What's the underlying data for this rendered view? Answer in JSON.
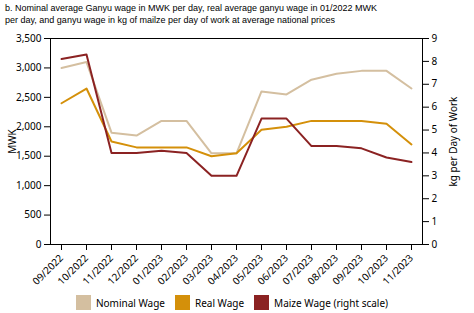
{
  "chart_data": {
    "type": "line",
    "title": "b. Nominal average Ganyu wage in MWK per day, real average ganyu wage in 01/2022 MWK\nper day, and ganyu wage in kg of mailze per day of work at average national prices",
    "categories": [
      "09/2022",
      "10/2022",
      "11/2022",
      "12/2022",
      "01/2023",
      "02/2023",
      "03/2023",
      "04/2023",
      "05/2023",
      "06/2023",
      "07/2023",
      "08/2023",
      "09/2023",
      "10/2023",
      "11/2023"
    ],
    "series": [
      {
        "name": "Nominal Wage",
        "color": "#d4bfa0",
        "values": [
          3000,
          3100,
          1900,
          1850,
          2100,
          2100,
          1550,
          1550,
          2600,
          2550,
          2800,
          2900,
          2950,
          2950,
          2650
        ]
      },
      {
        "name": "Real Wage",
        "color": "#d4900a",
        "values": [
          2400,
          2650,
          1750,
          1650,
          1650,
          1650,
          1500,
          1550,
          1950,
          2000,
          2100,
          2100,
          2100,
          2050,
          1700
        ]
      },
      {
        "name": "Maize Wage (right scale)",
        "color": "#8b2222",
        "axis": "y2",
        "values": [
          8.1,
          8.3,
          4.0,
          4.0,
          4.1,
          4.0,
          3.0,
          3.0,
          5.5,
          5.5,
          4.3,
          4.3,
          4.2,
          3.8,
          3.6
        ]
      }
    ],
    "ylabel": "MWK",
    "y2label": "kg per Day of Work",
    "ylim": [
      0,
      3500
    ],
    "yticks": [
      0,
      500,
      {
        "value": 1000,
        "label": "1,000"
      },
      {
        "value": 1500,
        "label": "1,500"
      },
      {
        "value": 2000,
        "label": "2,000"
      },
      {
        "value": 2500,
        "label": "2,500"
      },
      {
        "value": 3000,
        "label": "3,000"
      },
      {
        "value": 3500,
        "label": "3,500"
      }
    ],
    "y2lim": [
      0,
      9
    ],
    "y2ticks": [
      0,
      1,
      2,
      3,
      4,
      5,
      6,
      7,
      8,
      9
    ],
    "grid": false,
    "legend": "bottom"
  }
}
